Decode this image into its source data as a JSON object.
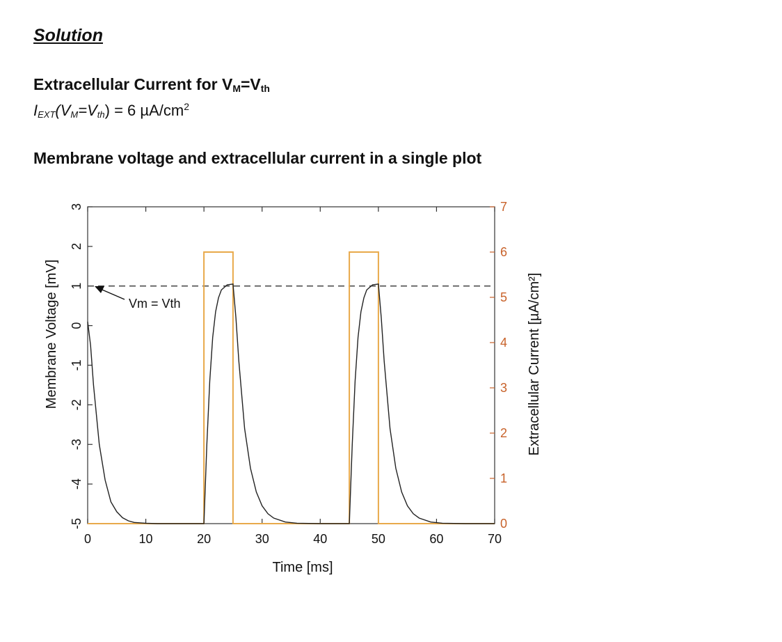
{
  "heading": "Solution",
  "section1": {
    "title_prefix": "Extracellular Current for V",
    "title_sub1": "M",
    "title_mid": "=V",
    "title_sub2": "th",
    "eq_I": "I",
    "eq_I_sub": "EXT",
    "eq_open": "(V",
    "eq_V_sub": "M",
    "eq_mid": "=V",
    "eq_Vth_sub": "th",
    "eq_close": ") =  6 µA/cm",
    "eq_sup": "2"
  },
  "section2": {
    "title": "Membrane voltage and extracellular current in a single plot"
  },
  "colors": {
    "voltage": "#222222",
    "current": "#e8a94a",
    "right_axis": "#c8622a",
    "threshold": "#444444"
  },
  "chart_data": {
    "type": "line",
    "xlabel": "Time [ms]",
    "ylabel": "Membrane Voltage [mV]",
    "ylabel_right": "Extracellular Current [µA/cm²]",
    "xlim": [
      0,
      70
    ],
    "ylim": [
      -5,
      3
    ],
    "ylim_right": [
      0,
      7
    ],
    "x_ticks": [
      "0",
      "10",
      "20",
      "30",
      "40",
      "50",
      "60",
      "70"
    ],
    "y_ticks": [
      "-5",
      "-4",
      "-3",
      "-2",
      "-1",
      "0",
      "1",
      "2",
      "3"
    ],
    "y_ticks_right": [
      "0",
      "1",
      "2",
      "3",
      "4",
      "5",
      "6",
      "7"
    ],
    "annotation": "Vm = Vth",
    "threshold": 1,
    "grid": false,
    "series": [
      {
        "axis": "left",
        "x": [
          0,
          0.5,
          1,
          2,
          3,
          4,
          5,
          6,
          7,
          8,
          10,
          12,
          15,
          20,
          20.5,
          21,
          21.5,
          22,
          22.5,
          23,
          24,
          25,
          25.5,
          26,
          27,
          28,
          29,
          30,
          31,
          32,
          34,
          36,
          40,
          45,
          45.5,
          46,
          46.5,
          47,
          47.5,
          48,
          49,
          50,
          50.5,
          51,
          52,
          53,
          54,
          55,
          56,
          57,
          59,
          61,
          65,
          70
        ],
        "values": [
          0.1,
          -0.5,
          -1.5,
          -3.0,
          -3.9,
          -4.45,
          -4.7,
          -4.85,
          -4.93,
          -4.97,
          -4.99,
          -5,
          -5,
          -5,
          -3.0,
          -1.4,
          -0.3,
          0.35,
          0.7,
          0.9,
          1.03,
          1.05,
          0.2,
          -0.9,
          -2.6,
          -3.6,
          -4.2,
          -4.55,
          -4.75,
          -4.86,
          -4.96,
          -4.99,
          -5,
          -5,
          -3.0,
          -1.4,
          -0.3,
          0.35,
          0.7,
          0.9,
          1.03,
          1.05,
          0.2,
          -0.9,
          -2.6,
          -3.6,
          -4.2,
          -4.55,
          -4.75,
          -4.86,
          -4.96,
          -4.99,
          -5,
          -5
        ]
      },
      {
        "axis": "right",
        "x": [
          0,
          20,
          20,
          25,
          25,
          45,
          45,
          50,
          50,
          70
        ],
        "values": [
          0,
          0,
          6,
          6,
          0,
          0,
          6,
          6,
          0,
          0
        ]
      }
    ]
  }
}
